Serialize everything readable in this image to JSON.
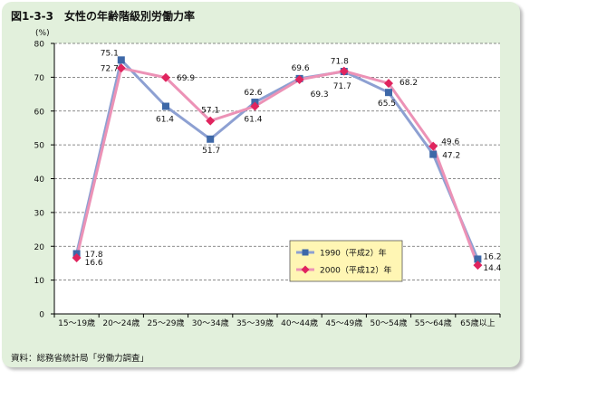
{
  "figure": {
    "title": "図1-3-3　女性の年齢階級別労働力率",
    "source": "資料：総務省統計局「労働力調査」"
  },
  "chart_data": {
    "type": "line",
    "categories": [
      "15〜19歳",
      "20〜24歳",
      "25〜29歳",
      "30〜34歳",
      "35〜39歳",
      "40〜44歳",
      "45〜49歳",
      "50〜54歳",
      "55〜64歳",
      "65歳以上"
    ],
    "ylabel": "(%)",
    "ylim": [
      0,
      80
    ],
    "yticks": [
      0,
      10,
      20,
      30,
      40,
      50,
      60,
      70,
      80
    ],
    "grid": true,
    "legend_position": "lower-right",
    "series": [
      {
        "name": "1990（平成2）年",
        "values": [
          17.8,
          75.1,
          61.4,
          51.7,
          62.6,
          69.6,
          71.7,
          65.5,
          47.2,
          16.2
        ],
        "color": "#8da0d2",
        "marker_color": "#3e68a8",
        "marker": "square",
        "labels": [
          "17.8",
          "75.1",
          "61.4",
          "51.7",
          "62.6",
          "69.6",
          "71.7",
          "65.5",
          "47.2",
          "16.2"
        ]
      },
      {
        "name": "2000（平成12）年",
        "values": [
          16.6,
          72.7,
          69.9,
          57.1,
          61.4,
          69.3,
          71.8,
          68.2,
          49.6,
          14.4
        ],
        "color": "#ec92b6",
        "marker_color": "#e0245e",
        "marker": "diamond",
        "labels": [
          "16.6",
          "72.7",
          "69.9",
          "57.1",
          "61.4",
          "69.3",
          "71.8",
          "68.2",
          "49.6",
          "14.4"
        ]
      }
    ]
  }
}
